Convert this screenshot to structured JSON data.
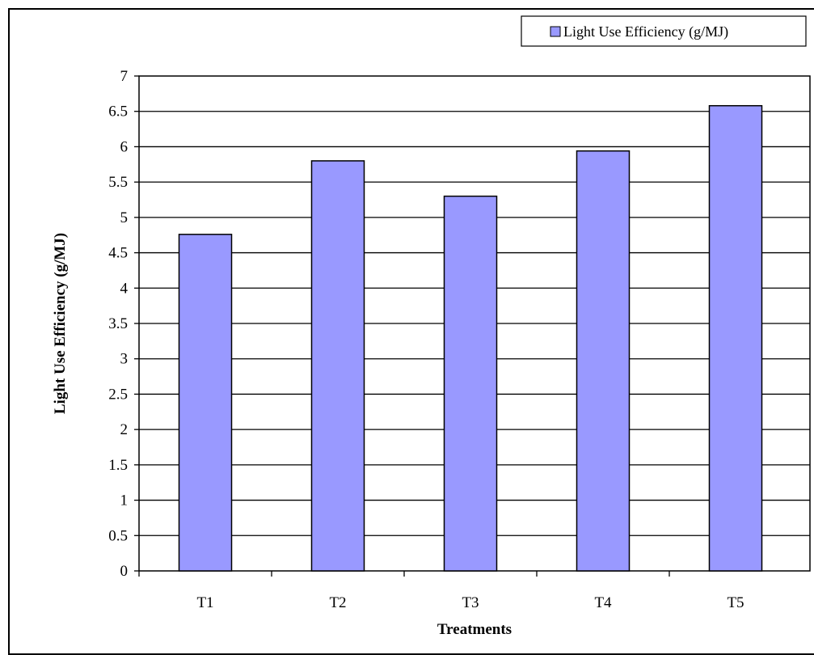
{
  "chart_data": {
    "type": "bar",
    "title": "",
    "xlabel": "Treatments",
    "ylabel": "Light Use Efficiency (g/MJ)",
    "categories": [
      "T1",
      "T2",
      "T3",
      "T4",
      "T5"
    ],
    "series": [
      {
        "name": "Light Use Efficiency  (g/MJ)",
        "values": [
          4.76,
          5.8,
          5.3,
          5.94,
          6.58
        ]
      }
    ],
    "ylim": [
      0,
      7
    ],
    "yticks": [
      "0",
      "0.5",
      "1",
      "1.5",
      "2",
      "2.5",
      "3",
      "3.5",
      "4",
      "4.5",
      "5",
      "5.5",
      "6",
      "6.5",
      "7"
    ],
    "grid": true,
    "legend_position": "top-right",
    "colors": {
      "bar_fill": "#9999ff",
      "bar_stroke": "#000000",
      "grid": "#000000",
      "plot_background": "#ffffff"
    }
  }
}
